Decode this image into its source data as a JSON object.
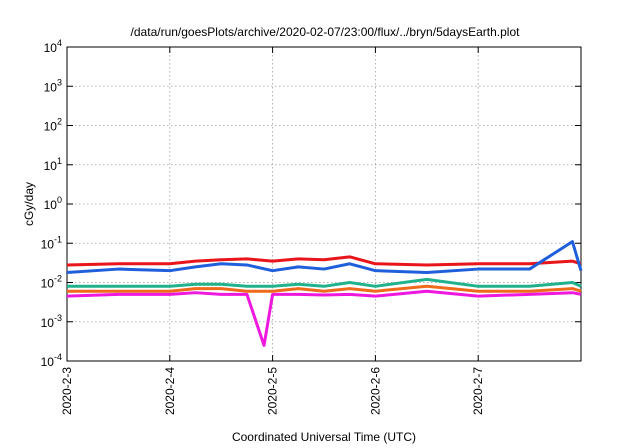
{
  "chart_data": {
    "type": "line",
    "title": "/data/run/goesPlots/archive/2020-02-07/23:00/flux/../bryn/5daysEarth.plot",
    "xlabel": "Coordinated Universal Time (UTC)",
    "ylabel": "cGy/day",
    "yscale": "log",
    "ylim": [
      0.0001,
      10000
    ],
    "xlim": [
      "2020-02-03",
      "2020-02-08"
    ],
    "x_ticks": [
      "2020-2-3",
      "2020-2-4",
      "2020-2-5",
      "2020-2-6",
      "2020-2-7"
    ],
    "y_ticks": [
      {
        "base": "10",
        "exp": "-4"
      },
      {
        "base": "10",
        "exp": "-3"
      },
      {
        "base": "10",
        "exp": "-2"
      },
      {
        "base": "10",
        "exp": "-1"
      },
      {
        "base": "10",
        "exp": "0"
      },
      {
        "base": "10",
        "exp": "1"
      },
      {
        "base": "10",
        "exp": "2"
      },
      {
        "base": "10",
        "exp": "3"
      },
      {
        "base": "10",
        "exp": "4"
      }
    ],
    "grid": true,
    "series": [
      {
        "color": "#e8161b",
        "x": [
          "2020-02-03",
          "2020-02-03 12:00",
          "2020-02-04",
          "2020-02-04 06:00",
          "2020-02-04 12:00",
          "2020-02-04 18:00",
          "2020-02-05",
          "2020-02-05 06:00",
          "2020-02-05 12:00",
          "2020-02-05 18:00",
          "2020-02-06",
          "2020-02-06 12:00",
          "2020-02-07",
          "2020-02-07 12:00",
          "2020-02-07 22:00",
          "2020-02-08"
        ],
        "values": [
          0.028,
          0.03,
          0.03,
          0.035,
          0.038,
          0.04,
          0.035,
          0.04,
          0.038,
          0.045,
          0.03,
          0.028,
          0.03,
          0.03,
          0.035,
          0.03
        ]
      },
      {
        "color": "#1f5fdc",
        "x": [
          "2020-02-03",
          "2020-02-03 12:00",
          "2020-02-04",
          "2020-02-04 06:00",
          "2020-02-04 12:00",
          "2020-02-04 18:00",
          "2020-02-05",
          "2020-02-05 06:00",
          "2020-02-05 12:00",
          "2020-02-05 18:00",
          "2020-02-06",
          "2020-02-06 12:00",
          "2020-02-07",
          "2020-02-07 12:00",
          "2020-02-07 22:00",
          "2020-02-08"
        ],
        "values": [
          0.018,
          0.022,
          0.02,
          0.025,
          0.03,
          0.028,
          0.02,
          0.025,
          0.022,
          0.03,
          0.02,
          0.018,
          0.022,
          0.022,
          0.11,
          0.02
        ]
      },
      {
        "color": "#20b28c",
        "x": [
          "2020-02-03",
          "2020-02-03 12:00",
          "2020-02-04",
          "2020-02-04 06:00",
          "2020-02-04 12:00",
          "2020-02-04 18:00",
          "2020-02-05",
          "2020-02-05 06:00",
          "2020-02-05 12:00",
          "2020-02-05 18:00",
          "2020-02-06",
          "2020-02-06 12:00",
          "2020-02-07",
          "2020-02-07 12:00",
          "2020-02-07 22:00",
          "2020-02-08"
        ],
        "values": [
          0.008,
          0.008,
          0.008,
          0.009,
          0.009,
          0.008,
          0.008,
          0.009,
          0.008,
          0.01,
          0.008,
          0.012,
          0.008,
          0.008,
          0.01,
          0.008
        ]
      },
      {
        "color": "#f06a1c",
        "x": [
          "2020-02-03",
          "2020-02-03 12:00",
          "2020-02-04",
          "2020-02-04 06:00",
          "2020-02-04 12:00",
          "2020-02-04 18:00",
          "2020-02-05",
          "2020-02-05 06:00",
          "2020-02-05 12:00",
          "2020-02-05 18:00",
          "2020-02-06",
          "2020-02-06 12:00",
          "2020-02-07",
          "2020-02-07 12:00",
          "2020-02-07 22:00",
          "2020-02-08"
        ],
        "values": [
          0.006,
          0.006,
          0.006,
          0.007,
          0.007,
          0.006,
          0.006,
          0.007,
          0.006,
          0.007,
          0.006,
          0.008,
          0.006,
          0.006,
          0.007,
          0.006
        ]
      },
      {
        "color": "#ee18de",
        "x": [
          "2020-02-03",
          "2020-02-03 12:00",
          "2020-02-04",
          "2020-02-04 06:00",
          "2020-02-04 12:00",
          "2020-02-04 18:00",
          "2020-02-04 22:00",
          "2020-02-05",
          "2020-02-05 06:00",
          "2020-02-05 12:00",
          "2020-02-05 18:00",
          "2020-02-06",
          "2020-02-06 12:00",
          "2020-02-07",
          "2020-02-07 12:00",
          "2020-02-07 22:00",
          "2020-02-08"
        ],
        "values": [
          0.0045,
          0.005,
          0.005,
          0.0055,
          0.005,
          0.005,
          0.00025,
          0.005,
          0.005,
          0.0048,
          0.005,
          0.0045,
          0.006,
          0.0045,
          0.005,
          0.0055,
          0.005
        ]
      }
    ]
  }
}
